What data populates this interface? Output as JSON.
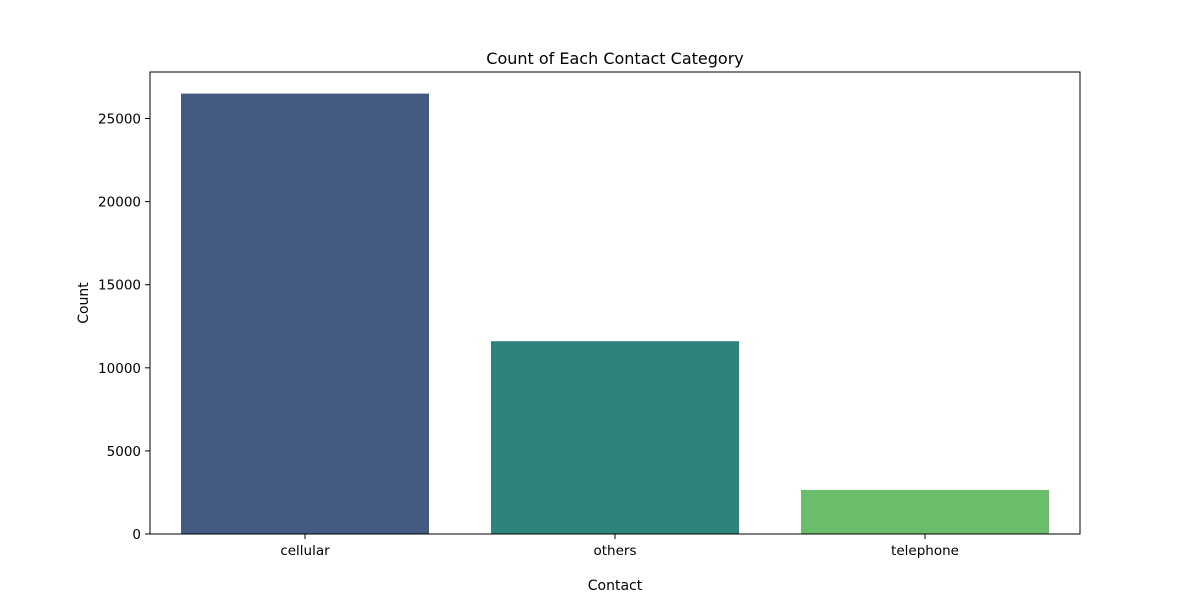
{
  "colors": {
    "background": "#ffffff",
    "axis": "#000000",
    "bars": [
      "#455a82",
      "#2e837d",
      "#6abd6b"
    ]
  },
  "chart_data": {
    "type": "bar",
    "title": "Count of Each Contact Category",
    "xlabel": "Contact",
    "ylabel": "Count",
    "categories": [
      "cellular",
      "others",
      "telephone"
    ],
    "values": [
      26500,
      11600,
      2650
    ],
    "ylim": [
      0,
      27800
    ],
    "yticks": [
      0,
      5000,
      10000,
      15000,
      20000,
      25000
    ],
    "ytick_labels": [
      "0",
      "5000",
      "10000",
      "15000",
      "20000",
      "25000"
    ],
    "grid": false,
    "legend": "none"
  }
}
